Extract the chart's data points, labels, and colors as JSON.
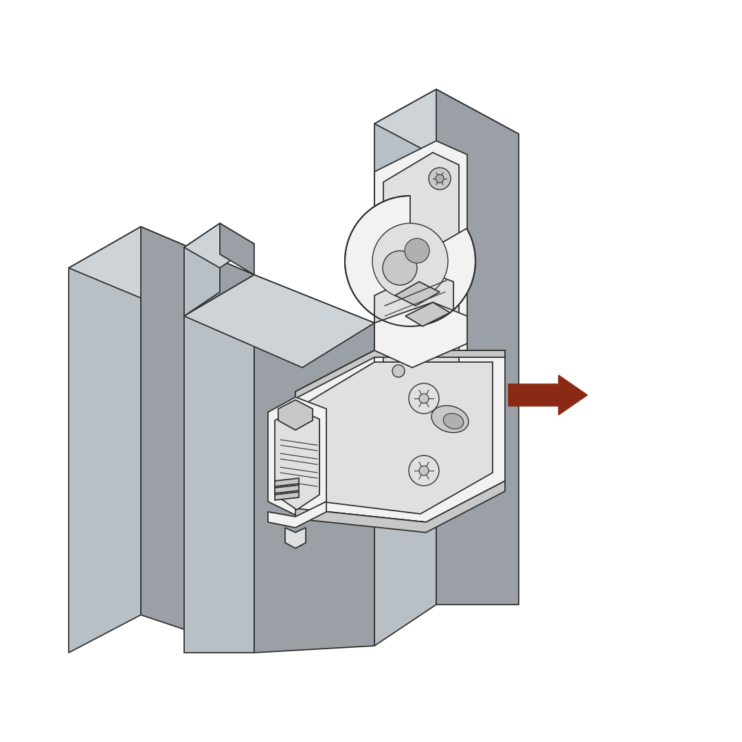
{
  "background_color": "#ffffff",
  "grey_face": "#b8bfc5",
  "grey_top": "#ced3d7",
  "grey_side": "#9aa0a6",
  "grey_dark_face": "#a8aeb4",
  "outline": "#303030",
  "hinge_white": "#f2f2f2",
  "hinge_light": "#e0e0e0",
  "hinge_mid": "#c8c8c8",
  "hinge_dark": "#b0b0b0",
  "arrow_color": "#8b2a14",
  "figsize": [
    10.8,
    10.8
  ],
  "dpi": 100
}
